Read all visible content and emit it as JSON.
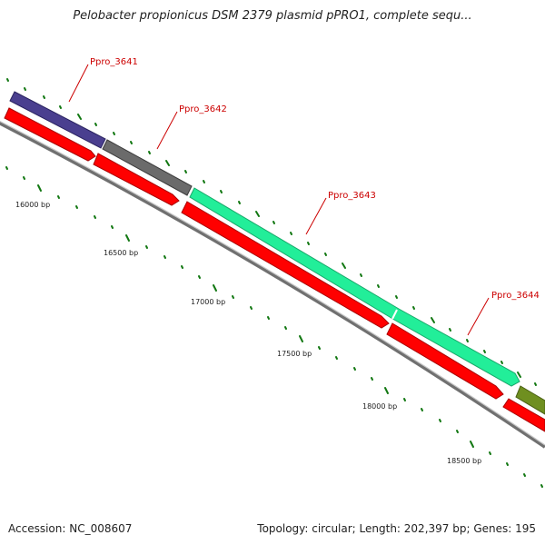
{
  "header": {
    "title": "Pelobacter propionicus DSM 2379 plasmid pPRO1, complete sequ..."
  },
  "footer": {
    "accession": "Accession: NC_008607",
    "summary": "Topology: circular; Length: 202,397 bp; Genes: 195"
  },
  "map": {
    "bp_labels": [
      "16000 bp",
      "16500 bp",
      "17000 bp",
      "17500 bp",
      "18000 bp",
      "18500 bp"
    ],
    "gene_labels": [
      "Ppro_3641",
      "Ppro_3642",
      "Ppro_3643",
      "Ppro_3644"
    ],
    "colors": {
      "cds": "#ff0000",
      "gene_3641": "#4a3f8f",
      "gene_3642": "#6b6b6b",
      "gene_3643": "#22ee99",
      "gene_3644": "#6f8f20",
      "tick": "#117711",
      "label": "#cc0000",
      "backbone": "#888888"
    }
  }
}
